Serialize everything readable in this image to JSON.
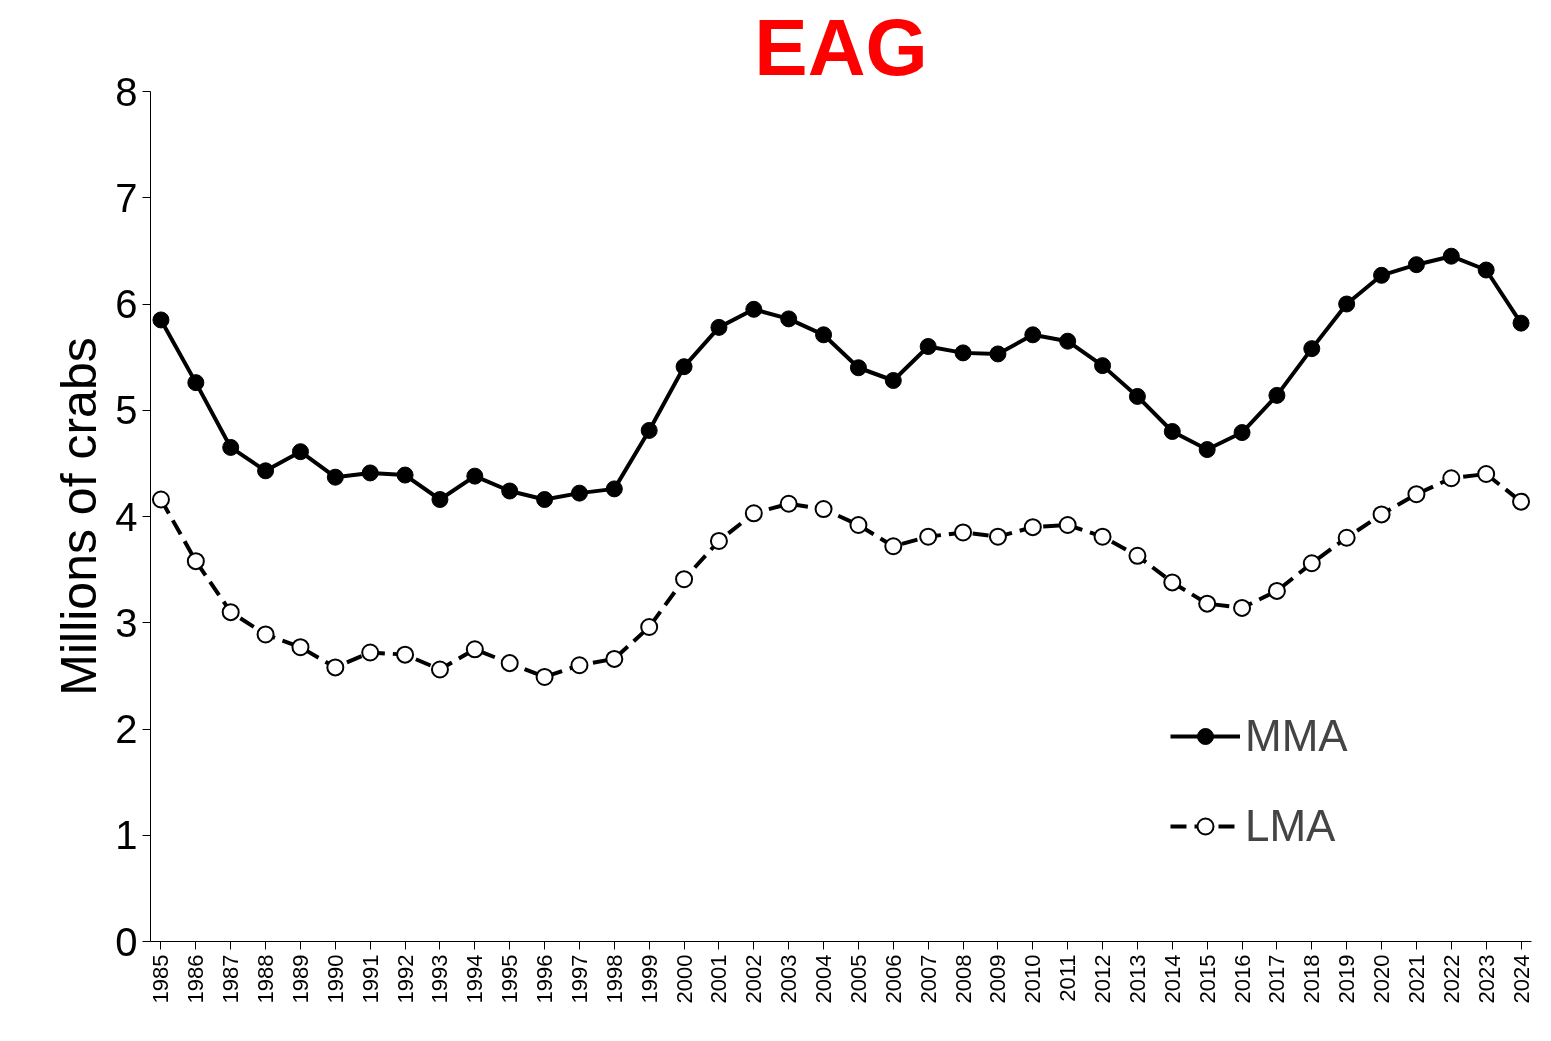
{
  "chart_data": {
    "type": "line",
    "title": "EAG",
    "ylabel": "Millions of crabs",
    "categories": [
      "1985",
      "1986",
      "1987",
      "1988",
      "1989",
      "1990",
      "1991",
      "1992",
      "1993",
      "1994",
      "1995",
      "1996",
      "1997",
      "1998",
      "1999",
      "2000",
      "2001",
      "2002",
      "2003",
      "2004",
      "2005",
      "2006",
      "2007",
      "2008",
      "2009",
      "2010",
      "2011",
      "2012",
      "2013",
      "2014",
      "2015",
      "2016",
      "2017",
      "2018",
      "2019",
      "2020",
      "2021",
      "2022",
      "2023",
      "2024"
    ],
    "series": [
      {
        "name": "MMA",
        "color": "#000000",
        "marker": "circle",
        "line_style": "solid",
        "values": [
          5.85,
          5.26,
          4.65,
          4.43,
          4.61,
          4.37,
          4.41,
          4.39,
          4.16,
          4.38,
          4.24,
          4.16,
          4.22,
          4.26,
          4.81,
          5.41,
          5.78,
          5.95,
          5.86,
          5.71,
          5.4,
          5.28,
          5.6,
          5.54,
          5.53,
          5.71,
          5.65,
          5.42,
          5.13,
          4.8,
          4.63,
          4.79,
          5.14,
          5.58,
          6.0,
          6.27,
          6.37,
          6.45,
          6.32,
          5.82
        ]
      },
      {
        "name": "LMA",
        "color": "#000000",
        "marker": "open_circle",
        "line_style": "dashed",
        "values": [
          4.16,
          3.58,
          3.1,
          2.89,
          2.77,
          2.58,
          2.72,
          2.7,
          2.56,
          2.75,
          2.62,
          2.49,
          2.6,
          2.66,
          2.96,
          3.41,
          3.77,
          4.03,
          4.12,
          4.07,
          3.92,
          3.72,
          3.81,
          3.85,
          3.81,
          3.9,
          3.92,
          3.81,
          3.63,
          3.38,
          3.18,
          3.14,
          3.3,
          3.56,
          3.8,
          4.02,
          4.21,
          4.36,
          4.4,
          4.14
        ]
      }
    ],
    "ylim": [
      0,
      8
    ],
    "yticks": [
      0,
      1,
      2,
      3,
      4,
      5,
      6,
      7,
      8
    ],
    "grid": false,
    "legend": "bottom right"
  }
}
